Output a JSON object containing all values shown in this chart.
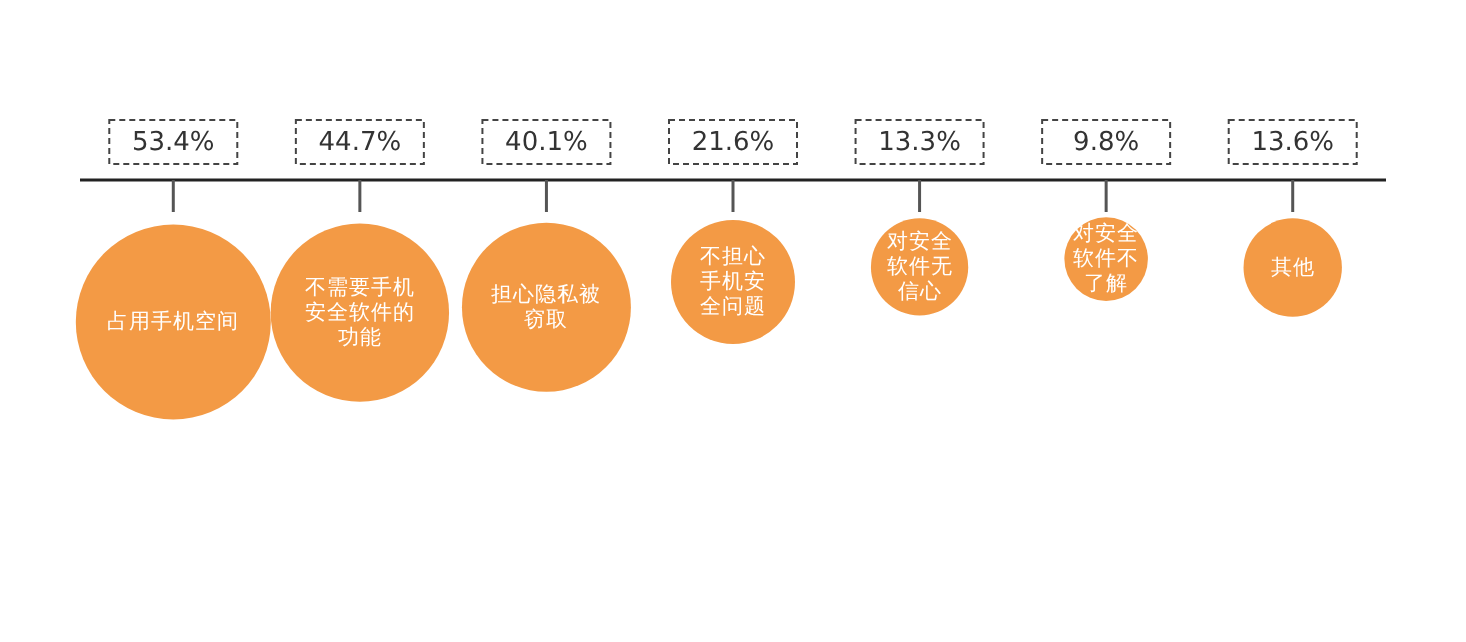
{
  "chart_data": {
    "type": "other",
    "categories": [
      "占用手机空间",
      "不需要手机安全软件的功能",
      "担心隐私被窃取",
      "不担心手机安全问题",
      "对安全软件无信心",
      "对安全软件不了解",
      "其他"
    ],
    "values": [
      53.4,
      44.7,
      40.1,
      21.6,
      13.3,
      9.8,
      13.6
    ],
    "value_labels": [
      "53.4%",
      "44.7%",
      "40.1%",
      "21.6%",
      "13.3%",
      "9.8%",
      "13.6%"
    ],
    "color": "#f39a45"
  }
}
